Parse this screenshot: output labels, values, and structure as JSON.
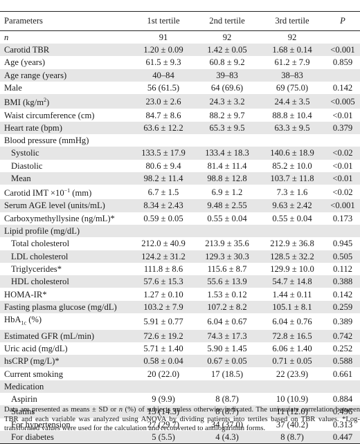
{
  "header": {
    "params": "Parameters",
    "t1": "1st tertile",
    "t2": "2nd tertile",
    "t3": "3rd tertile",
    "p": "P"
  },
  "rows": [
    {
      "label": "n",
      "label_italic": true,
      "t1": "91",
      "t2": "92",
      "t3": "92",
      "p": "",
      "shade": false
    },
    {
      "label": "Carotid TBR",
      "t1": "1.20 ± 0.09",
      "t2": "1.42 ± 0.05",
      "t3": "1.68 ± 0.14",
      "p": "<0.001",
      "shade": true
    },
    {
      "label": "Age (years)",
      "t1": "61.5 ± 9.3",
      "t2": "60.8 ± 9.2",
      "t3": "61.2 ± 7.9",
      "p": "0.859",
      "shade": false
    },
    {
      "label": "Age range (years)",
      "t1": "40–84",
      "t2": "39–83",
      "t3": "38–83",
      "p": "",
      "shade": true
    },
    {
      "label": "Male",
      "t1": "56 (61.5)",
      "t2": "64 (69.6)",
      "t3": "69 (75.0)",
      "p": "0.142",
      "shade": false
    },
    {
      "label": "BMI (kg/m",
      "label_sup": "2",
      "label_after": ")",
      "t1": "23.0 ± 2.6",
      "t2": "24.3 ± 3.2",
      "t3": "24.4 ± 3.5",
      "p": "<0.005",
      "shade": true
    },
    {
      "label": "Waist circumference (cm)",
      "t1": "84.7 ± 8.6",
      "t2": "88.2 ± 9.7",
      "t3": "88.8 ± 10.4",
      "p": "<0.01",
      "shade": false
    },
    {
      "label": "Heart rate (bpm)",
      "t1": "63.6 ± 12.2",
      "t2": "65.3 ± 9.5",
      "t3": "63.3 ± 9.5",
      "p": "0.379",
      "shade": true
    },
    {
      "label": "Blood pressure (mmHg)",
      "t1": "",
      "t2": "",
      "t3": "",
      "p": "",
      "shade": false
    },
    {
      "label": "Systolic",
      "sub": true,
      "t1": "133.5 ± 17.9",
      "t2": "133.4 ± 18.3",
      "t3": "140.6 ± 18.9",
      "p": "<0.02",
      "shade": true
    },
    {
      "label": "Diastolic",
      "sub": true,
      "t1": "80.6 ± 9.4",
      "t2": "81.4 ± 11.4",
      "t3": "85.2 ± 10.0",
      "p": "<0.01",
      "shade": false
    },
    {
      "label": "Mean",
      "sub": true,
      "t1": "98.2 ± 11.4",
      "t2": "98.8 ± 12.8",
      "t3": "103.7 ± 11.8",
      "p": "<0.01",
      "shade": true
    },
    {
      "label": "Carotid IMT ×10",
      "label_sup": "−1",
      "label_after": " (mm)",
      "t1": "6.7 ± 1.5",
      "t2": "6.9 ± 1.2",
      "t3": "7.3 ± 1.6",
      "p": "<0.02",
      "shade": false
    },
    {
      "label": "Serum AGE level (units/mL)",
      "t1": "8.34 ± 2.43",
      "t2": "9.48 ± 2.55",
      "t3": "9.63 ± 2.42",
      "p": "<0.001",
      "shade": true
    },
    {
      "label": "Carboxymethyllysine (ng/mL)*",
      "t1": "0.59 ± 0.05",
      "t2": "0.55 ± 0.04",
      "t3": "0.55 ± 0.04",
      "p": "0.173",
      "shade": false
    },
    {
      "label": "Lipid profile (mg/dL)",
      "t1": "",
      "t2": "",
      "t3": "",
      "p": "",
      "shade": true
    },
    {
      "label": "Total cholesterol",
      "sub": true,
      "t1": "212.0 ± 40.9",
      "t2": "213.9 ± 35.6",
      "t3": "212.9 ± 36.8",
      "p": "0.945",
      "shade": false
    },
    {
      "label": "LDL cholesterol",
      "sub": true,
      "t1": "124.2 ± 31.2",
      "t2": "129.3 ± 30.3",
      "t3": "128.5 ± 32.2",
      "p": "0.505",
      "shade": true
    },
    {
      "label": "Triglycerides*",
      "sub": true,
      "t1": "111.8 ± 8.6",
      "t2": "115.6 ± 8.7",
      "t3": "129.9 ± 10.0",
      "p": "0.112",
      "shade": false
    },
    {
      "label": "HDL cholesterol",
      "sub": true,
      "t1": "57.6 ± 15.3",
      "t2": "55.6 ± 13.9",
      "t3": "54.7 ± 14.8",
      "p": "0.388",
      "shade": true
    },
    {
      "label": "HOMA-IR*",
      "t1": "1.27 ± 0.10",
      "t2": "1.53 ± 0.12",
      "t3": "1.44 ± 0.11",
      "p": "0.142",
      "shade": false
    },
    {
      "label": "Fasting plasma glucose (mg/dL)",
      "t1": "103.2 ± 7.9",
      "t2": "107.2 ± 8.2",
      "t3": "105.1 ± 8.1",
      "p": "0.259",
      "shade": true
    },
    {
      "label": "HbA",
      "label_sub": "1c",
      "label_after": " (%)",
      "t1": "5.91 ± 0.77",
      "t2": "6.04 ± 0.67",
      "t3": "6.04 ± 0.76",
      "p": "0.389",
      "shade": false
    },
    {
      "label": "Estimated GFR (mL/min)",
      "t1": "72.6 ± 19.2",
      "t2": "74.3 ± 17.3",
      "t3": "72.8 ± 16.5",
      "p": "0.742",
      "shade": true
    },
    {
      "label": "Uric acid (mg/dL)",
      "t1": "5.71 ± 1.40",
      "t2": "5.90 ± 1.45",
      "t3": "6.06 ± 1.40",
      "p": "0.252",
      "shade": false
    },
    {
      "label": "hsCRP (mg/L)*",
      "t1": "0.58 ± 0.04",
      "t2": "0.67 ± 0.05",
      "t3": "0.71 ± 0.05",
      "p": "0.588",
      "shade": true
    },
    {
      "label": "Current smoking",
      "t1": "20 (22.0)",
      "t2": "17 (18.5)",
      "t3": "22 (23.9)",
      "p": "0.661",
      "shade": false
    },
    {
      "label": "Medication",
      "t1": "",
      "t2": "",
      "t3": "",
      "p": "",
      "shade": true
    },
    {
      "label": "Aspirin",
      "sub": true,
      "t1": "9 (9.9)",
      "t2": "8 (8.7)",
      "t3": "10 (10.9)",
      "p": "0.884",
      "shade": false
    },
    {
      "label": "Statins",
      "sub": true,
      "t1": "13 (14.3)",
      "t2": "8 (8.7)",
      "t3": "11 (12.0)",
      "p": "0.496",
      "shade": true
    },
    {
      "label": "For hypertension",
      "sub": true,
      "t1": "27 (29.7)",
      "t2": "34 (37.0)",
      "t3": "37 (40.2)",
      "p": "0.313",
      "shade": false
    },
    {
      "label": "For diabetes",
      "sub": true,
      "t1": "5 (5.5)",
      "t2": "4 (4.3)",
      "t3": "8 (8.7)",
      "p": "0.447",
      "shade": true
    }
  ],
  "footnote": {
    "part1": "Data are presented as means ± SD or ",
    "n": "n",
    "part2": " (%) of subjects unless otherwise indicated. The univariate correlation between TBR and each variable was analyzed using ANOVA by dividing patients into tertiles based on TBR values. *Log-transformed values were used for the calculation and reconverted to antilogarithm forms."
  }
}
